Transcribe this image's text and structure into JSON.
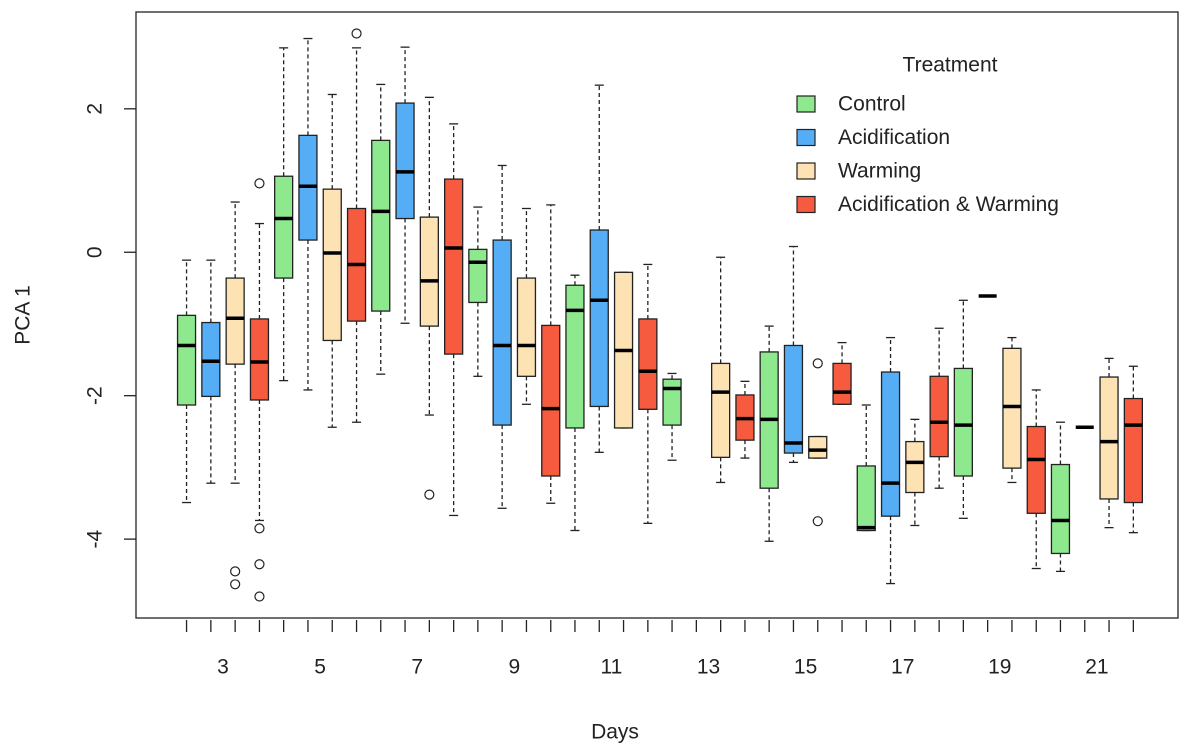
{
  "chart_data": {
    "type": "boxplot",
    "xlabel": "Days",
    "ylabel": "PCA 1",
    "categories": [
      "3",
      "5",
      "7",
      "9",
      "11",
      "13",
      "15",
      "17",
      "19",
      "21"
    ],
    "ylim": [
      -5.1,
      3.35
    ],
    "yticks": [
      -4,
      -2,
      0,
      2
    ],
    "legend_title": "Treatment",
    "legend": "top-right",
    "series": [
      {
        "name": "Control",
        "color": "#8ee88e",
        "boxes": [
          {
            "whislo": -3.49,
            "q1": -2.13,
            "med": -1.3,
            "q3": -0.88,
            "whishi": -0.11,
            "fliers": []
          },
          {
            "whislo": -1.79,
            "q1": -0.36,
            "med": 0.47,
            "q3": 1.06,
            "whishi": 2.85,
            "fliers": []
          },
          {
            "whislo": -1.7,
            "q1": -0.82,
            "med": 0.57,
            "q3": 1.56,
            "whishi": 2.34,
            "fliers": []
          },
          {
            "whislo": -1.73,
            "q1": -0.7,
            "med": -0.14,
            "q3": 0.04,
            "whishi": 0.63,
            "fliers": []
          },
          {
            "whislo": -3.88,
            "q1": -2.45,
            "med": -0.81,
            "q3": -0.46,
            "whishi": -0.32,
            "fliers": []
          },
          {
            "whislo": -2.9,
            "q1": -2.41,
            "med": -1.9,
            "q3": -1.77,
            "whishi": -1.69,
            "fliers": []
          },
          {
            "whislo": -4.03,
            "q1": -3.29,
            "med": -2.33,
            "q3": -1.39,
            "whishi": -1.03,
            "fliers": []
          },
          {
            "whislo": -3.88,
            "q1": -3.88,
            "med": -3.84,
            "q3": -2.98,
            "whishi": -2.13,
            "fliers": []
          },
          {
            "whislo": -3.71,
            "q1": -3.12,
            "med": -2.41,
            "q3": -1.62,
            "whishi": -0.67,
            "fliers": []
          },
          {
            "whislo": -4.45,
            "q1": -4.2,
            "med": -3.74,
            "q3": -2.96,
            "whishi": -2.37,
            "fliers": []
          }
        ]
      },
      {
        "name": "Acidification",
        "color": "#55aef5",
        "boxes": [
          {
            "whislo": -3.22,
            "q1": -2.01,
            "med": -1.52,
            "q3": -0.98,
            "whishi": -0.11,
            "fliers": []
          },
          {
            "whislo": -1.92,
            "q1": 0.17,
            "med": 0.92,
            "q3": 1.63,
            "whishi": 2.98,
            "fliers": []
          },
          {
            "whislo": -0.99,
            "q1": 0.47,
            "med": 1.12,
            "q3": 2.08,
            "whishi": 2.86,
            "fliers": []
          },
          {
            "whislo": -3.57,
            "q1": -2.41,
            "med": -1.3,
            "q3": 0.17,
            "whishi": 1.21,
            "fliers": []
          },
          {
            "whislo": -2.79,
            "q1": -2.15,
            "med": -0.67,
            "q3": 0.31,
            "whishi": 2.33,
            "fliers": []
          },
          null,
          {
            "whislo": -2.93,
            "q1": -2.8,
            "med": -2.66,
            "q3": -1.3,
            "whishi": 0.08,
            "fliers": []
          },
          {
            "whislo": -4.62,
            "q1": -3.68,
            "med": -3.22,
            "q3": -1.67,
            "whishi": -1.19,
            "fliers": []
          },
          {
            "whislo": -0.61,
            "q1": -0.61,
            "med": -0.61,
            "q3": -0.61,
            "whishi": -0.61,
            "fliers": []
          },
          {
            "whislo": -2.44,
            "q1": -2.44,
            "med": -2.44,
            "q3": -2.44,
            "whishi": -2.44,
            "fliers": []
          }
        ]
      },
      {
        "name": "Warming",
        "color": "#fde2b3",
        "boxes": [
          {
            "whislo": -3.22,
            "q1": -1.56,
            "med": -0.92,
            "q3": -0.36,
            "whishi": 0.7,
            "fliers": [
              -4.45,
              -4.63
            ]
          },
          {
            "whislo": -2.44,
            "q1": -1.23,
            "med": -0.01,
            "q3": 0.88,
            "whishi": 2.2,
            "fliers": []
          },
          {
            "whislo": -2.27,
            "q1": -1.03,
            "med": -0.4,
            "q3": 0.49,
            "whishi": 2.16,
            "fliers": [
              -3.38
            ]
          },
          {
            "whislo": -2.12,
            "q1": -1.73,
            "med": -1.3,
            "q3": -0.36,
            "whishi": 0.61,
            "fliers": []
          },
          {
            "whislo": -2.45,
            "q1": -2.45,
            "med": -1.37,
            "q3": -0.28,
            "whishi": -0.28,
            "fliers": []
          },
          {
            "whislo": -3.21,
            "q1": -2.86,
            "med": -1.95,
            "q3": -1.55,
            "whishi": -0.07,
            "fliers": []
          },
          {
            "whislo": -2.87,
            "q1": -2.87,
            "med": -2.76,
            "q3": -2.57,
            "whishi": -2.57,
            "fliers": [
              -1.55,
              -3.75
            ]
          },
          {
            "whislo": -3.81,
            "q1": -3.35,
            "med": -2.93,
            "q3": -2.64,
            "whishi": -2.33,
            "fliers": []
          },
          {
            "whislo": -3.21,
            "q1": -3.01,
            "med": -2.15,
            "q3": -1.34,
            "whishi": -1.19,
            "fliers": []
          },
          {
            "whislo": -3.84,
            "q1": -3.44,
            "med": -2.64,
            "q3": -1.74,
            "whishi": -1.48,
            "fliers": []
          }
        ]
      },
      {
        "name": "Acidification & Warming",
        "color": "#f65b3f",
        "boxes": [
          {
            "whislo": -3.74,
            "q1": -2.06,
            "med": -1.53,
            "q3": -0.93,
            "whishi": 0.4,
            "fliers": [
              0.96,
              -3.85,
              -4.35,
              -4.8
            ]
          },
          {
            "whislo": -2.37,
            "q1": -0.96,
            "med": -0.17,
            "q3": 0.61,
            "whishi": 2.85,
            "fliers": [
              3.05
            ]
          },
          {
            "whislo": -3.67,
            "q1": -1.42,
            "med": 0.06,
            "q3": 1.02,
            "whishi": 1.79,
            "fliers": []
          },
          {
            "whislo": -3.5,
            "q1": -3.12,
            "med": -2.18,
            "q3": -1.02,
            "whishi": 0.66,
            "fliers": []
          },
          {
            "whislo": -3.78,
            "q1": -2.19,
            "med": -1.66,
            "q3": -0.93,
            "whishi": -0.17,
            "fliers": []
          },
          {
            "whislo": -2.87,
            "q1": -2.62,
            "med": -2.32,
            "q3": -1.99,
            "whishi": -1.8,
            "fliers": []
          },
          {
            "whislo": -2.12,
            "q1": -2.12,
            "med": -1.95,
            "q3": -1.55,
            "whishi": -1.26,
            "fliers": []
          },
          {
            "whislo": -3.29,
            "q1": -2.85,
            "med": -2.37,
            "q3": -1.73,
            "whishi": -1.06,
            "fliers": []
          },
          {
            "whislo": -4.41,
            "q1": -3.64,
            "med": -2.89,
            "q3": -2.43,
            "whishi": -1.92,
            "fliers": []
          },
          {
            "whislo": -3.91,
            "q1": -3.49,
            "med": -2.41,
            "q3": -2.04,
            "whishi": -1.59,
            "fliers": []
          }
        ]
      }
    ]
  }
}
